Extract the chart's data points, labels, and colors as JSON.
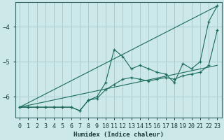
{
  "bg_color": "#cce8e8",
  "grid_color": "#aacccc",
  "line_color": "#1a6b5a",
  "xlabel": "Humidex (Indice chaleur)",
  "xlim": [
    -0.5,
    23.5
  ],
  "ylim": [
    -6.6,
    -3.3
  ],
  "yticks": [
    -6,
    -5,
    -4
  ],
  "xticks": [
    0,
    1,
    2,
    3,
    4,
    5,
    6,
    7,
    8,
    9,
    10,
    11,
    12,
    13,
    14,
    15,
    16,
    17,
    18,
    19,
    20,
    21,
    22,
    23
  ],
  "line1_x": [
    0,
    1,
    2,
    3,
    4,
    5,
    6,
    7,
    8,
    9,
    10,
    11,
    12,
    13,
    14,
    15,
    16,
    17,
    18,
    19,
    20,
    21,
    22,
    23
  ],
  "line1_y": [
    -6.3,
    -6.3,
    -6.3,
    -6.3,
    -6.3,
    -6.3,
    -6.3,
    -6.4,
    -6.1,
    -6.0,
    -5.6,
    -4.65,
    -4.85,
    -5.2,
    -5.1,
    -5.2,
    -5.3,
    -5.35,
    -5.6,
    -5.05,
    -5.2,
    -5.0,
    -3.85,
    -3.4
  ],
  "line2_x": [
    0,
    1,
    2,
    3,
    4,
    5,
    6,
    7,
    8,
    9,
    10,
    11,
    12,
    13,
    14,
    15,
    16,
    17,
    18,
    19,
    20,
    21,
    22,
    23
  ],
  "line2_y": [
    -6.3,
    -6.3,
    -6.3,
    -6.3,
    -6.3,
    -6.3,
    -6.3,
    -6.4,
    -6.1,
    -6.05,
    -5.8,
    -5.65,
    -5.5,
    -5.45,
    -5.5,
    -5.55,
    -5.5,
    -5.45,
    -5.5,
    -5.4,
    -5.35,
    -5.3,
    -5.1,
    -4.1
  ],
  "line3_x": [
    0,
    23
  ],
  "line3_y": [
    -6.3,
    -3.4
  ],
  "line4_x": [
    0,
    23
  ],
  "line4_y": [
    -6.3,
    -5.1
  ]
}
